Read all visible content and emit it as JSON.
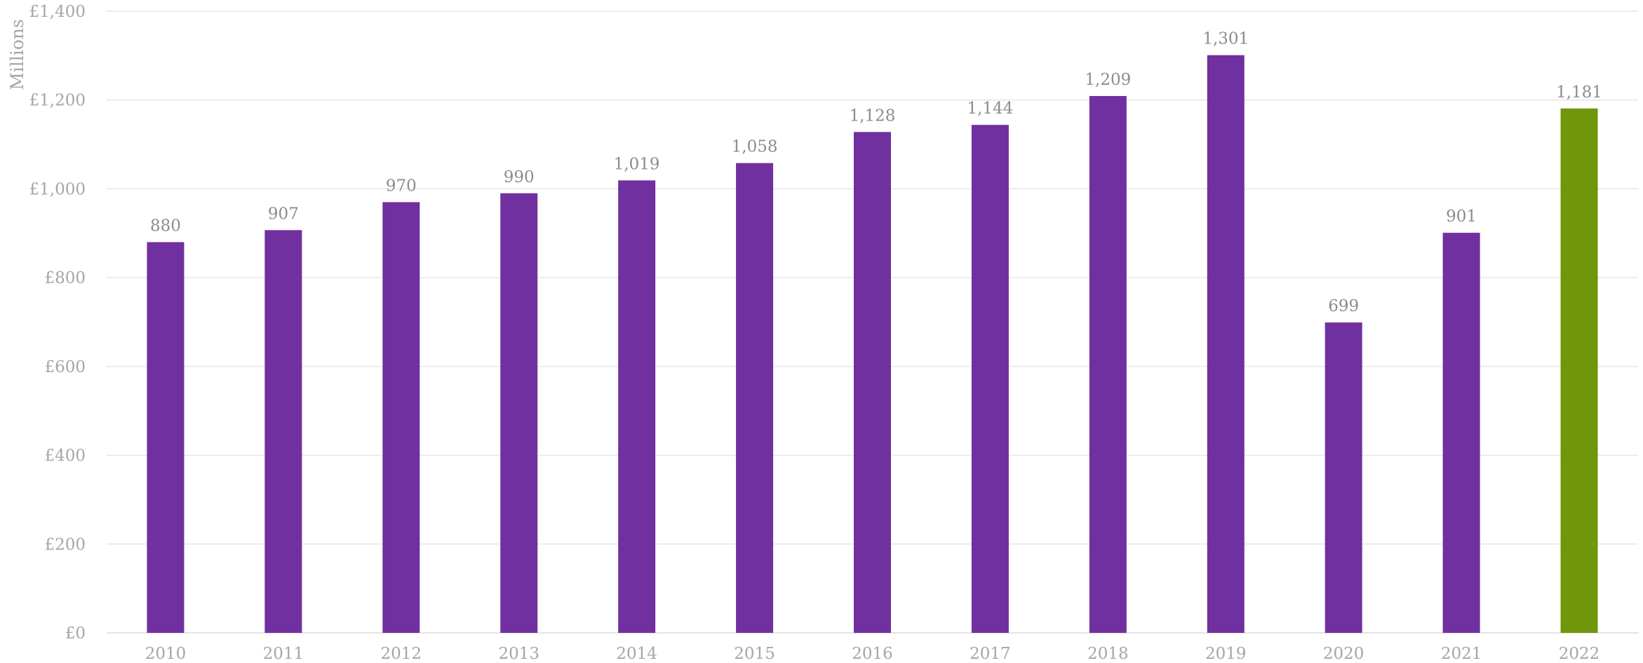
{
  "chart_data": {
    "type": "bar",
    "title": "",
    "xlabel": "",
    "ylabel": "Millions",
    "categories": [
      "2010",
      "2011",
      "2012",
      "2013",
      "2014",
      "2015",
      "2016",
      "2017",
      "2018",
      "2019",
      "2020",
      "2021",
      "2022"
    ],
    "values": [
      880,
      907,
      970,
      990,
      1019,
      1058,
      1128,
      1144,
      1209,
      1301,
      699,
      901,
      1181
    ],
    "data_labels": [
      "880",
      "907",
      "970",
      "990",
      "1,019",
      "1,058",
      "1,128",
      "1,144",
      "1,209",
      "1,301",
      "699",
      "901",
      "1,181"
    ],
    "ylim": [
      0,
      1400
    ],
    "yticks": [
      0,
      200,
      400,
      600,
      800,
      1000,
      1200,
      1400
    ],
    "ytick_labels": [
      "£0",
      "£200",
      "£400",
      "£600",
      "£800",
      "£1,000",
      "£1,200",
      "£1,400"
    ],
    "grid": true,
    "legend": "none",
    "colors": {
      "bar": "#7030a0",
      "highlight": "#70960b",
      "highlight_category": "2022",
      "grid": "#e6e6e6",
      "tick_text": "#a6a6a6",
      "label_text": "#8c8c8c"
    }
  }
}
